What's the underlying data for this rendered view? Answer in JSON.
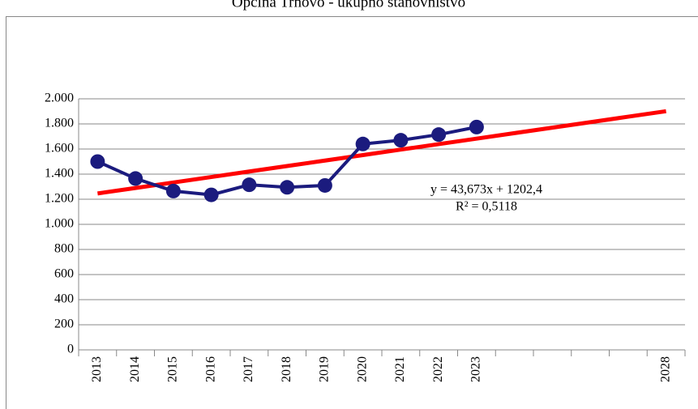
{
  "chart_data": {
    "type": "line",
    "title": "Općina Trnovo - ukupno stanovništvo",
    "categories": [
      "2013",
      "2014",
      "2015",
      "2016",
      "2017",
      "2018",
      "2019",
      "2020",
      "2021",
      "2022",
      "2023",
      null,
      null,
      null,
      null,
      "2028"
    ],
    "series": [
      {
        "color": "#1b1b7e",
        "values": [
          1500,
          1365,
          1265,
          1235,
          1315,
          1295,
          1310,
          1640,
          1670,
          1715,
          1775,
          null,
          null,
          null,
          null,
          null
        ]
      },
      {
        "color": "#ff0000",
        "values": [
          1246.1,
          1289.7,
          1333.4,
          1377.1,
          1420.8,
          1464.4,
          1508.1,
          1551.8,
          1595.5,
          1639.1,
          1682.8,
          1726.5,
          1770.1,
          1813.8,
          1857.5,
          1901.2
        ]
      }
    ],
    "ylim": [
      0,
      2000
    ],
    "yticks": [
      0,
      200,
      400,
      600,
      800,
      {
        "value": 1000,
        "label": "1.000"
      },
      {
        "value": 1200,
        "label": "1.200"
      },
      {
        "value": 1400,
        "label": "1.400"
      },
      {
        "value": 1600,
        "label": "1.600"
      },
      {
        "value": 1800,
        "label": "1.800"
      },
      {
        "value": 2000,
        "label": "2.000"
      }
    ],
    "grid": true,
    "annotations": [
      "y = 43,673x + 1202,4",
      "R² = 0,5118"
    ]
  }
}
